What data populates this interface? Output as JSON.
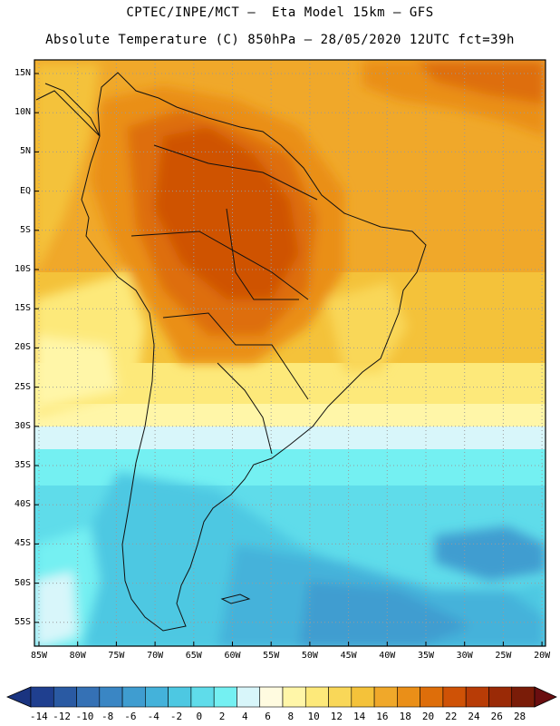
{
  "header": {
    "line1": "CPTEC/INPE/MCT –  Eta Model 15km – GFS",
    "line2": "Absolute Temperature (C) 850hPa – 28/05/2020 12UTC fct=39h"
  },
  "map": {
    "lat_labels": [
      "15N",
      "10N",
      "5N",
      "EQ",
      "5S",
      "10S",
      "15S",
      "20S",
      "25S",
      "30S",
      "35S",
      "40S",
      "45S",
      "50S",
      "55S"
    ],
    "lon_labels": [
      "85W",
      "80W",
      "75W",
      "70W",
      "65W",
      "60W",
      "55W",
      "50W",
      "45W",
      "40W",
      "35W",
      "30W",
      "25W",
      "20W"
    ],
    "grid": "dotted"
  },
  "colorbar": {
    "labels": [
      "-14",
      "-12",
      "-10",
      "-8",
      "-6",
      "-4",
      "-2",
      "0",
      "2",
      "4",
      "6",
      "8",
      "10",
      "12",
      "14",
      "16",
      "18",
      "20",
      "22",
      "24",
      "26",
      "28"
    ],
    "colors": [
      "#1f3f8f",
      "#2a5aa3",
      "#3571b5",
      "#3a86c4",
      "#3f9dd0",
      "#44b2da",
      "#4dc8e2",
      "#5fdcea",
      "#74f0f2",
      "#d8f6fa",
      "#fffbe0",
      "#fff6a8",
      "#fde97a",
      "#f9d758",
      "#f4c23a",
      "#f0a82a",
      "#ea8f18",
      "#de6e0a",
      "#cf5206",
      "#b83c06",
      "#9a2a06",
      "#7a1c08"
    ],
    "min_color": "#1a3480",
    "max_color": "#6a0e10"
  }
}
